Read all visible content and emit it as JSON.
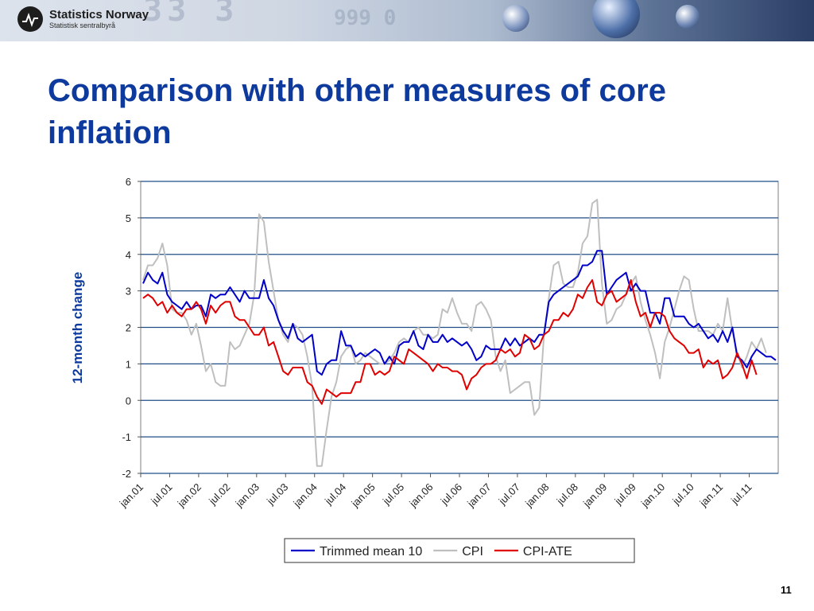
{
  "header": {
    "logo_name": "Statistics Norway",
    "logo_sub": "Statistisk sentralbyrå",
    "banner_digits": "33 3",
    "banner_digits2": "999 0"
  },
  "title": "Comparison with other measures of core inflation",
  "slide_number": "11",
  "colors": {
    "title": "#0d3a9c",
    "trimmed": "#0000c8",
    "cpi": "#bfbfbf",
    "cpi_ate": "#e00000",
    "grid": "#1f4f86"
  },
  "chart_data": {
    "type": "line",
    "ylabel": "12-month change",
    "ylim": [
      -2,
      6
    ],
    "yticks": [
      -2,
      -1,
      0,
      1,
      2,
      3,
      4,
      5,
      6
    ],
    "x_start": "jan.01",
    "x_step": "monthly",
    "x_tick_labels": [
      "jan.01",
      "jul.01",
      "jan.02",
      "jul.02",
      "jan.03",
      "jul.03",
      "jan.04",
      "jul.04",
      "jan.05",
      "jul.05",
      "jan.06",
      "jul.06",
      "jan.07",
      "jul.07",
      "jan.08",
      "jul.08",
      "jan.09",
      "jul.09",
      "jan.10",
      "jul.10",
      "jan.11",
      "jul.11"
    ],
    "legend_position": "bottom",
    "series": [
      {
        "name": "Trimmed mean 10",
        "color": "#0000c8",
        "values": [
          3.2,
          3.5,
          3.3,
          3.2,
          3.5,
          2.9,
          2.7,
          2.6,
          2.5,
          2.7,
          2.5,
          2.6,
          2.6,
          2.3,
          2.9,
          2.8,
          2.9,
          2.9,
          3.1,
          2.9,
          2.7,
          3.0,
          2.8,
          2.8,
          2.8,
          3.3,
          2.8,
          2.6,
          2.2,
          1.9,
          1.7,
          2.1,
          1.7,
          1.6,
          1.7,
          1.8,
          0.8,
          0.7,
          1.0,
          1.1,
          1.1,
          1.9,
          1.5,
          1.5,
          1.2,
          1.3,
          1.2,
          1.3,
          1.4,
          1.3,
          1.0,
          1.2,
          1.0,
          1.5,
          1.6,
          1.6,
          1.9,
          1.5,
          1.4,
          1.8,
          1.6,
          1.6,
          1.8,
          1.6,
          1.7,
          1.6,
          1.5,
          1.6,
          1.4,
          1.1,
          1.2,
          1.5,
          1.4,
          1.4,
          1.4,
          1.7,
          1.5,
          1.7,
          1.5,
          1.6,
          1.7,
          1.6,
          1.8,
          1.8,
          2.7,
          2.9,
          3.0,
          3.1,
          3.2,
          3.3,
          3.4,
          3.7,
          3.7,
          3.8,
          4.1,
          4.1,
          2.9,
          3.1,
          3.3,
          3.4,
          3.5,
          3.0,
          3.2,
          3.0,
          3.0,
          2.4,
          2.4,
          2.1,
          2.8,
          2.8,
          2.3,
          2.3,
          2.3,
          2.1,
          2.0,
          2.1,
          1.9,
          1.7,
          1.8,
          1.6,
          1.9,
          1.6,
          2.0,
          1.2,
          1.1,
          0.9,
          1.2,
          1.4,
          1.3,
          1.2,
          1.2,
          1.1
        ]
      },
      {
        "name": "CPI",
        "color": "#bfbfbf",
        "values": [
          3.3,
          3.7,
          3.7,
          3.9,
          4.3,
          3.7,
          2.5,
          2.4,
          2.4,
          2.2,
          1.8,
          2.1,
          1.5,
          0.8,
          1.0,
          0.5,
          0.4,
          0.4,
          1.6,
          1.4,
          1.5,
          1.8,
          2.1,
          2.9,
          5.1,
          4.9,
          3.8,
          3.0,
          2.2,
          1.8,
          1.6,
          2.1,
          2.0,
          1.8,
          1.2,
          0.4,
          -1.8,
          -1.8,
          -0.8,
          0.1,
          0.5,
          1.2,
          1.4,
          1.5,
          1.0,
          1.1,
          1.3,
          1.2,
          1.1,
          1.0,
          1.0,
          1.1,
          1.3,
          1.6,
          1.7,
          1.6,
          1.9,
          2.0,
          1.8,
          1.8,
          1.7,
          1.8,
          2.5,
          2.4,
          2.8,
          2.4,
          2.1,
          2.1,
          1.9,
          2.6,
          2.7,
          2.5,
          2.2,
          1.2,
          0.8,
          1.1,
          0.2,
          0.3,
          0.4,
          0.5,
          0.5,
          -0.4,
          -0.2,
          1.8,
          2.8,
          3.7,
          3.8,
          3.2,
          3.1,
          3.1,
          3.5,
          4.3,
          4.5,
          5.4,
          5.5,
          3.2,
          2.1,
          2.2,
          2.5,
          2.6,
          2.9,
          3.2,
          3.4,
          2.7,
          2.2,
          1.8,
          1.3,
          0.6,
          1.6,
          2.0,
          2.5,
          3.0,
          3.4,
          3.3,
          2.5,
          1.9,
          1.9,
          1.9,
          1.8,
          2.1,
          1.9,
          2.8,
          1.9,
          1.3,
          0.9,
          1.2,
          1.6,
          1.4,
          1.7,
          1.3
        ]
      },
      {
        "name": "CPI-ATE",
        "color": "#e00000",
        "values": [
          2.8,
          2.9,
          2.8,
          2.6,
          2.7,
          2.4,
          2.6,
          2.4,
          2.3,
          2.5,
          2.5,
          2.7,
          2.5,
          2.1,
          2.6,
          2.4,
          2.6,
          2.7,
          2.7,
          2.3,
          2.2,
          2.2,
          2.0,
          1.8,
          1.8,
          2.0,
          1.5,
          1.6,
          1.2,
          0.8,
          0.7,
          0.9,
          0.9,
          0.9,
          0.5,
          0.4,
          0.1,
          -0.1,
          0.3,
          0.2,
          0.1,
          0.2,
          0.2,
          0.2,
          0.5,
          0.5,
          1.0,
          1.0,
          0.7,
          0.8,
          0.7,
          0.8,
          1.2,
          1.1,
          1.0,
          1.4,
          1.3,
          1.2,
          1.1,
          1.0,
          0.8,
          1.0,
          0.9,
          0.9,
          0.8,
          0.8,
          0.7,
          0.3,
          0.6,
          0.7,
          0.9,
          1.0,
          1.0,
          1.1,
          1.4,
          1.3,
          1.4,
          1.2,
          1.3,
          1.8,
          1.7,
          1.4,
          1.5,
          1.8,
          1.9,
          2.2,
          2.2,
          2.4,
          2.3,
          2.5,
          2.9,
          2.8,
          3.1,
          3.3,
          2.7,
          2.6,
          2.9,
          3.0,
          2.7,
          2.8,
          2.9,
          3.3,
          2.7,
          2.3,
          2.4,
          2.0,
          2.4,
          2.4,
          2.3,
          1.9,
          1.7,
          1.6,
          1.5,
          1.3,
          1.3,
          1.4,
          0.9,
          1.1,
          1.0,
          1.1,
          0.6,
          0.7,
          0.9,
          1.3,
          1.0,
          0.6,
          1.1,
          0.7
        ]
      }
    ]
  }
}
